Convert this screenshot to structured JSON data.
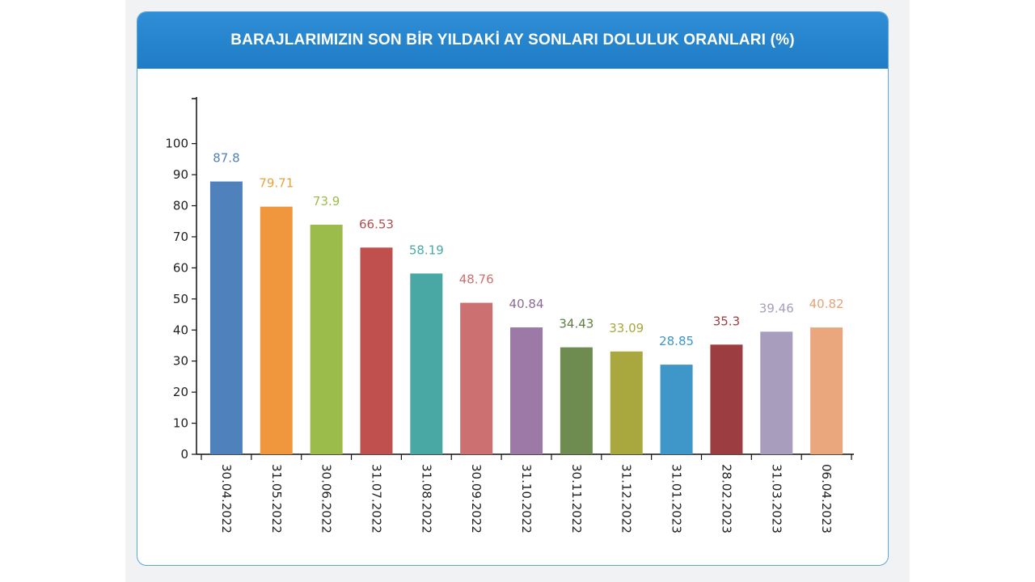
{
  "header": {
    "title": "BARAJLARIMIZIN SON BİR YILDAKİ AY SONLARI DOLULUK ORANLARI (%)"
  },
  "chart_data": {
    "type": "bar",
    "categories": [
      "30.04.2022",
      "31.05.2022",
      "30.06.2022",
      "31.07.2022",
      "31.08.2022",
      "30.09.2022",
      "31.10.2022",
      "30.11.2022",
      "31.12.2022",
      "31.01.2023",
      "28.02.2023",
      "31.03.2023",
      "06.04.2023"
    ],
    "values": [
      87.8,
      79.71,
      73.9,
      66.53,
      58.19,
      48.76,
      40.84,
      34.43,
      33.09,
      28.85,
      35.3,
      39.46,
      40.82
    ],
    "value_labels": [
      "87.8",
      "79.71",
      "73.9",
      "66.53",
      "58.19",
      "48.76",
      "40.84",
      "34.43",
      "33.09",
      "28.85",
      "35.3",
      "39.46",
      "40.82"
    ],
    "colors": [
      "#4f81bd",
      "#f0963c",
      "#9bbb4a",
      "#c0504d",
      "#4aa8a4",
      "#cd7071",
      "#9c79a6",
      "#6e8c4f",
      "#a8a83f",
      "#3e96c9",
      "#9b3d41",
      "#a89dbd",
      "#eaa67d"
    ],
    "label_colors": [
      "#4f81bd",
      "#e6a33c",
      "#9bbb4a",
      "#b05050",
      "#4aa8a4",
      "#cd7071",
      "#8c6c96",
      "#5e7e45",
      "#a8a83f",
      "#3e96c9",
      "#9b3d41",
      "#a89dbd",
      "#e5a27a"
    ],
    "yticks": [
      "0",
      "10",
      "20",
      "30",
      "40",
      "50",
      "60",
      "70",
      "80",
      "90",
      "100"
    ],
    "ylim": [
      0,
      115
    ],
    "xlabel": "",
    "ylabel": "",
    "grid": false
  }
}
